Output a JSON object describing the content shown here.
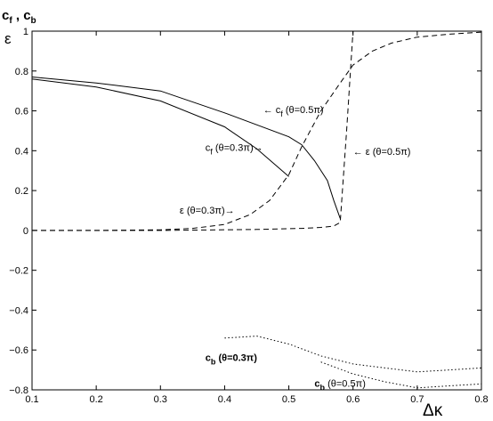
{
  "chart_data": {
    "type": "line",
    "xlabel": "Δκ",
    "ylabel_top": "c_f , c_b",
    "ylabel_second": "ε",
    "xlim": [
      0.1,
      0.8
    ],
    "ylim": [
      -0.8,
      1.0
    ],
    "xticks": [
      "0.1",
      "0.2",
      "0.3",
      "0.4",
      "0.5",
      "0.6",
      "0.7",
      "0.8"
    ],
    "yticks": [
      "1",
      "0.8",
      "0.6",
      "0.4",
      "0.2",
      "0",
      "−0.2",
      "−0.4",
      "−0.6",
      "−0.8"
    ],
    "grid": false,
    "series": [
      {
        "name": "c_f (θ=0.5π)",
        "style": "solid",
        "x": [
          0.1,
          0.2,
          0.3,
          0.4,
          0.5,
          0.52,
          0.54,
          0.56,
          0.57,
          0.58
        ],
        "y": [
          0.77,
          0.74,
          0.7,
          0.59,
          0.47,
          0.43,
          0.35,
          0.25,
          0.15,
          0.06
        ]
      },
      {
        "name": "c_f (θ=0.3π)",
        "style": "solid",
        "x": [
          0.1,
          0.2,
          0.3,
          0.4,
          0.45,
          0.5
        ],
        "y": [
          0.76,
          0.72,
          0.65,
          0.52,
          0.41,
          0.27
        ]
      },
      {
        "name": "ε (θ=0.3π)",
        "style": "dashed",
        "x": [
          0.1,
          0.2,
          0.3,
          0.35,
          0.4,
          0.44,
          0.47,
          0.5,
          0.52,
          0.55,
          0.58,
          0.6,
          0.63,
          0.66,
          0.7,
          0.75,
          0.8
        ],
        "y": [
          0.0,
          0.0,
          0.003,
          0.01,
          0.03,
          0.08,
          0.15,
          0.28,
          0.42,
          0.6,
          0.74,
          0.83,
          0.9,
          0.94,
          0.97,
          0.985,
          0.995
        ]
      },
      {
        "name": "ε (θ=0.5π)",
        "style": "dashed",
        "x": [
          0.1,
          0.3,
          0.45,
          0.52,
          0.55,
          0.57,
          0.58,
          0.59,
          0.6
        ],
        "y": [
          0.0,
          0.0,
          0.005,
          0.01,
          0.015,
          0.022,
          0.04,
          0.5,
          1.0
        ]
      },
      {
        "name": "c_b (θ=0.3π)",
        "style": "dotted",
        "x": [
          0.4,
          0.45,
          0.5,
          0.55,
          0.6,
          0.65,
          0.7,
          0.75,
          0.8
        ],
        "y": [
          -0.54,
          -0.53,
          -0.57,
          -0.63,
          -0.67,
          -0.69,
          -0.71,
          -0.7,
          -0.69
        ]
      },
      {
        "name": "c_b (θ=0.5π)",
        "style": "dotted",
        "x": [
          0.55,
          0.6,
          0.65,
          0.7,
          0.75,
          0.8
        ],
        "y": [
          -0.66,
          -0.72,
          -0.76,
          -0.79,
          -0.78,
          -0.77
        ]
      }
    ],
    "annotations": [
      {
        "id": "cf05",
        "text": "← c_f (θ=0.5π)",
        "x": 0.46,
        "y": 0.59
      },
      {
        "id": "cf03",
        "text": "c_f (θ=0.3π)→",
        "x": 0.37,
        "y": 0.4
      },
      {
        "id": "eps05",
        "text": "← ε (θ=0.5π)",
        "x": 0.6,
        "y": 0.38
      },
      {
        "id": "eps03",
        "text": "ε (θ=0.3π)→",
        "x": 0.33,
        "y": 0.085
      },
      {
        "id": "cb03",
        "text": "c_b (θ=0.3π)",
        "x": 0.37,
        "y": -0.655
      },
      {
        "id": "cb05",
        "text": "c_b (θ=0.5π)",
        "x": 0.54,
        "y": -0.785
      }
    ]
  }
}
